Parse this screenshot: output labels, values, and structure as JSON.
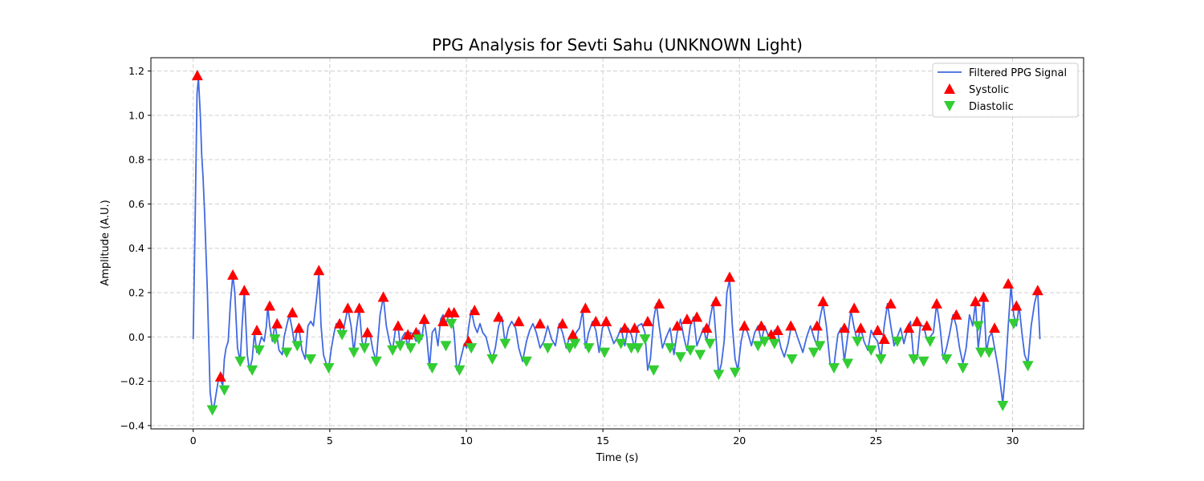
{
  "chart_data": {
    "type": "line",
    "title": "PPG Analysis for Sevti Sahu (UNKNOWN Light)",
    "xlabel": "Time (s)",
    "ylabel": "Amplitude (A.U.)",
    "xlim": [
      -1.55,
      32.6
    ],
    "ylim": [
      -0.415,
      1.26
    ],
    "xticks": [
      0,
      5,
      10,
      15,
      20,
      25,
      30
    ],
    "yticks": [
      -0.4,
      -0.2,
      0.0,
      0.2,
      0.4,
      0.6,
      0.8,
      1.0,
      1.2
    ],
    "ytick_labels": [
      "−0.4",
      "−0.2",
      "0.0",
      "0.2",
      "0.4",
      "0.6",
      "0.8",
      "1.0",
      "1.2"
    ],
    "grid": true,
    "legend_position": "top-right",
    "colors": {
      "signal": "#4169e1",
      "systolic": "#ff0000",
      "diastolic": "#32cd32"
    },
    "series": [
      {
        "name": "Filtered PPG Signal",
        "kind": "line",
        "x": [
          0.0,
          0.06,
          0.14,
          0.19,
          0.26,
          0.31,
          0.36,
          0.42,
          0.52,
          0.62,
          0.7,
          0.78,
          0.86,
          0.94,
          1.02,
          1.08,
          1.14,
          1.2,
          1.28,
          1.36,
          1.45,
          1.52,
          1.62,
          1.72,
          1.79,
          1.87,
          1.98,
          2.06,
          2.16,
          2.24,
          2.33,
          2.41,
          2.5,
          2.6,
          2.68,
          2.73,
          2.8,
          2.9,
          2.99,
          3.07,
          3.14,
          3.26,
          3.33,
          3.42,
          3.52,
          3.63,
          3.72,
          3.81,
          3.87,
          3.98,
          4.1,
          4.2,
          4.3,
          4.4,
          4.52,
          4.6,
          4.68,
          4.77,
          4.87,
          4.96,
          5.06,
          5.16,
          5.24,
          5.36,
          5.45,
          5.53,
          5.66,
          5.78,
          5.88,
          5.98,
          6.08,
          6.18,
          6.27,
          6.38,
          6.48,
          6.58,
          6.7,
          6.84,
          6.96,
          7.07,
          7.18,
          7.3,
          7.4,
          7.5,
          7.58,
          7.66,
          7.76,
          7.86,
          7.96,
          8.06,
          8.16,
          8.26,
          8.37,
          8.46,
          8.55,
          8.65,
          8.75,
          8.86,
          8.96,
          9.06,
          9.15,
          9.25,
          9.36,
          9.45,
          9.55,
          9.65,
          9.75,
          9.83,
          9.93,
          10.01,
          10.08,
          10.18,
          10.3,
          10.4,
          10.5,
          10.6,
          10.72,
          10.84,
          10.95,
          11.06,
          11.18,
          11.3,
          11.42,
          11.54,
          11.66,
          11.8,
          11.92,
          12.06,
          12.2,
          12.32,
          12.44,
          12.56,
          12.7,
          12.84,
          12.98,
          13.12,
          13.26,
          13.4,
          13.52,
          13.66,
          13.78,
          13.9,
          14.02,
          14.14,
          14.26,
          14.36,
          14.48,
          14.62,
          14.74,
          14.86,
          14.98,
          15.12,
          15.26,
          15.4,
          15.54,
          15.66,
          15.8,
          15.92,
          16.04,
          16.16,
          16.28,
          16.42,
          16.54,
          16.64,
          16.74,
          16.86,
          16.96,
          17.06,
          17.18,
          17.32,
          17.46,
          17.6,
          17.72,
          17.84,
          17.96,
          18.08,
          18.2,
          18.32,
          18.44,
          18.56,
          18.68,
          18.8,
          18.92,
          19.04,
          19.14,
          19.24,
          19.34,
          19.44,
          19.54,
          19.64,
          19.74,
          19.84,
          19.94,
          20.06,
          20.18,
          20.3,
          20.44,
          20.56,
          20.68,
          20.8,
          20.92,
          21.04,
          21.16,
          21.28,
          21.4,
          21.52,
          21.64,
          21.78,
          21.9,
          22.04,
          22.18,
          22.32,
          22.46,
          22.6,
          22.72,
          22.84,
          22.94,
          23.06,
          23.18,
          23.32,
          23.46,
          23.6,
          23.72,
          23.84,
          23.96,
          24.08,
          24.2,
          24.32,
          24.44,
          24.56,
          24.7,
          24.82,
          24.94,
          25.06,
          25.18,
          25.3,
          25.42,
          25.54,
          25.66,
          25.78,
          25.9,
          26.02,
          26.14,
          26.26,
          26.38,
          26.5,
          26.62,
          26.74,
          26.86,
          26.98,
          27.1,
          27.22,
          27.34,
          27.46,
          27.58,
          27.7,
          27.82,
          27.94,
          28.06,
          28.18,
          28.3,
          28.42,
          28.54,
          28.64,
          28.74,
          28.84,
          28.94,
          29.04,
          29.14,
          29.24,
          29.34,
          29.44,
          29.54,
          29.64,
          29.74,
          29.84,
          29.94,
          30.04,
          30.14,
          30.24,
          30.34,
          30.44,
          30.56,
          30.68,
          30.8,
          30.92,
          31.0
        ],
        "y": [
          -0.01,
          0.45,
          1.1,
          1.17,
          1.0,
          0.82,
          0.72,
          0.55,
          0.2,
          -0.25,
          -0.33,
          -0.3,
          -0.24,
          -0.18,
          -0.2,
          -0.22,
          -0.1,
          -0.05,
          -0.02,
          0.15,
          0.28,
          0.2,
          -0.05,
          -0.11,
          0.05,
          0.21,
          -0.08,
          -0.15,
          -0.1,
          0.02,
          -0.07,
          -0.04,
          0.0,
          -0.02,
          0.05,
          0.14,
          0.05,
          -0.02,
          0.06,
          0.0,
          -0.06,
          -0.08,
          0.0,
          0.05,
          0.1,
          0.03,
          -0.04,
          0.04,
          0.04,
          -0.06,
          -0.1,
          0.05,
          0.07,
          0.05,
          0.18,
          0.29,
          0.05,
          -0.08,
          -0.12,
          -0.14,
          -0.05,
          0.02,
          0.06,
          0.05,
          0.0,
          0.05,
          0.13,
          0.05,
          -0.07,
          0.04,
          0.13,
          -0.02,
          -0.05,
          0.02,
          0.01,
          -0.06,
          -0.11,
          0.1,
          0.18,
          0.05,
          -0.02,
          -0.06,
          0.03,
          0.05,
          -0.04,
          0.0,
          0.02,
          -0.05,
          0.02,
          0.01,
          -0.02,
          0.03,
          -0.01,
          0.08,
          0.0,
          -0.14,
          0.02,
          0.04,
          -0.04,
          0.08,
          0.1,
          0.06,
          0.1,
          0.11,
          0.02,
          -0.15,
          -0.12,
          -0.08,
          -0.03,
          -0.05,
          0.04,
          0.12,
          0.05,
          0.02,
          0.06,
          0.02,
          0.0,
          -0.06,
          -0.1,
          -0.05,
          0.05,
          0.09,
          -0.03,
          0.04,
          0.07,
          0.04,
          -0.05,
          -0.11,
          -0.02,
          0.03,
          0.06,
          0.02,
          -0.05,
          -0.02,
          0.05,
          -0.01,
          -0.04,
          0.06,
          0.02,
          -0.05,
          0.0,
          -0.03,
          0.02,
          0.04,
          0.12,
          -0.05,
          0.02,
          0.07,
          0.03,
          -0.07,
          0.04,
          0.07,
          0.02,
          -0.03,
          0.0,
          0.04,
          -0.04,
          0.04,
          0.01,
          -0.05,
          0.05,
          0.06,
          0.02,
          -0.15,
          -0.1,
          0.08,
          0.15,
          0.05,
          -0.05,
          0.0,
          0.04,
          -0.08,
          0.02,
          0.08,
          0.0,
          -0.06,
          0.05,
          0.09,
          -0.04,
          0.0,
          0.04,
          -0.02,
          0.08,
          0.16,
          0.0,
          -0.17,
          -0.12,
          -0.02,
          0.2,
          0.26,
          0.05,
          -0.1,
          -0.15,
          -0.02,
          0.05,
          0.02,
          -0.04,
          0.02,
          0.05,
          -0.02,
          0.05,
          0.01,
          -0.02,
          0.03,
          0.02,
          -0.05,
          -0.09,
          -0.03,
          0.05,
          0.03,
          -0.02,
          -0.07,
          0.0,
          0.05,
          0.0,
          -0.04,
          0.08,
          0.15,
          0.05,
          -0.12,
          -0.13,
          0.01,
          0.04,
          -0.11,
          0.0,
          0.12,
          0.04,
          -0.02,
          0.04,
          -0.02,
          -0.06,
          0.03,
          0.0,
          -0.02,
          -0.1,
          0.05,
          0.15,
          0.05,
          -0.04,
          0.0,
          0.04,
          -0.03,
          0.03,
          0.07,
          -0.1,
          -0.1,
          0.05,
          0.05,
          -0.01,
          0.0,
          0.02,
          0.15,
          0.05,
          -0.1,
          -0.05,
          0.02,
          0.1,
          0.05,
          -0.05,
          -0.12,
          -0.05,
          0.1,
          0.05,
          0.16,
          -0.05,
          0.05,
          0.18,
          -0.07,
          0.0,
          0.02,
          -0.05,
          -0.12,
          -0.2,
          -0.3,
          -0.15,
          0.05,
          0.23,
          0.1,
          0.05,
          0.14,
          0.02,
          -0.08,
          -0.12,
          0.05,
          0.15,
          0.21,
          -0.01
        ]
      },
      {
        "name": "Systolic",
        "kind": "scatter",
        "marker": "triangle-up",
        "x": [
          0.15,
          1.0,
          1.45,
          1.87,
          2.33,
          2.8,
          3.07,
          3.63,
          3.87,
          4.6,
          5.36,
          5.66,
          6.08,
          6.38,
          6.96,
          7.5,
          7.86,
          8.16,
          8.46,
          9.15,
          9.36,
          9.55,
          10.08,
          10.3,
          11.18,
          11.92,
          12.7,
          13.52,
          13.9,
          14.36,
          14.74,
          15.12,
          15.8,
          16.16,
          16.64,
          17.06,
          17.72,
          18.08,
          18.44,
          18.8,
          19.14,
          19.64,
          20.18,
          20.8,
          21.16,
          21.4,
          21.88,
          22.84,
          23.06,
          23.84,
          24.2,
          24.44,
          25.06,
          25.3,
          25.54,
          26.2,
          26.5,
          26.86,
          27.22,
          27.94,
          28.64,
          28.94,
          29.34,
          29.84,
          30.14,
          30.92
        ],
        "y": [
          1.18,
          -0.18,
          0.28,
          0.21,
          0.03,
          0.14,
          0.06,
          0.11,
          0.04,
          0.3,
          0.06,
          0.13,
          0.13,
          0.02,
          0.18,
          0.05,
          0.01,
          0.02,
          0.08,
          0.07,
          0.11,
          0.11,
          -0.02,
          0.12,
          0.09,
          0.07,
          0.06,
          0.06,
          0.01,
          0.13,
          0.07,
          0.07,
          0.04,
          0.04,
          0.07,
          0.15,
          0.05,
          0.08,
          0.09,
          0.04,
          0.16,
          0.27,
          0.05,
          0.05,
          0.01,
          0.03,
          0.05,
          0.05,
          0.16,
          0.04,
          0.13,
          0.04,
          0.03,
          -0.01,
          0.15,
          0.04,
          0.07,
          0.05,
          0.15,
          0.1,
          0.16,
          0.18,
          0.04,
          0.24,
          0.14,
          0.21
        ]
      },
      {
        "name": "Diastolic",
        "kind": "scatter",
        "marker": "triangle-down",
        "x": [
          0.7,
          1.14,
          1.72,
          2.16,
          2.41,
          2.99,
          3.42,
          3.81,
          4.3,
          4.96,
          5.45,
          5.88,
          6.27,
          6.7,
          7.3,
          7.58,
          7.96,
          8.26,
          8.75,
          9.25,
          9.45,
          9.75,
          10.18,
          10.95,
          11.42,
          12.2,
          12.98,
          13.78,
          13.98,
          14.48,
          15.06,
          15.66,
          16.04,
          16.28,
          16.54,
          16.86,
          17.46,
          17.84,
          18.2,
          18.56,
          18.92,
          19.24,
          19.84,
          20.68,
          20.92,
          21.28,
          21.92,
          22.72,
          22.94,
          23.46,
          23.96,
          24.32,
          24.82,
          25.18,
          25.78,
          26.38,
          26.74,
          26.98,
          27.58,
          28.18,
          28.74,
          28.84,
          29.14,
          29.64,
          30.04,
          30.56
        ],
        "y": [
          -0.33,
          -0.24,
          -0.11,
          -0.15,
          -0.06,
          -0.01,
          -0.07,
          -0.04,
          -0.1,
          -0.14,
          0.01,
          -0.07,
          -0.05,
          -0.11,
          -0.06,
          -0.04,
          -0.05,
          -0.01,
          -0.14,
          -0.04,
          0.06,
          -0.15,
          -0.05,
          -0.1,
          -0.03,
          -0.11,
          -0.05,
          -0.05,
          -0.03,
          -0.05,
          -0.07,
          -0.03,
          -0.05,
          -0.05,
          -0.01,
          -0.15,
          -0.05,
          -0.09,
          -0.06,
          -0.08,
          -0.03,
          -0.17,
          -0.16,
          -0.04,
          -0.02,
          -0.03,
          -0.1,
          -0.07,
          -0.04,
          -0.14,
          -0.12,
          -0.02,
          -0.06,
          -0.1,
          -0.02,
          -0.1,
          -0.11,
          -0.02,
          -0.1,
          -0.14,
          0.05,
          -0.07,
          -0.07,
          -0.31,
          0.06,
          -0.13
        ]
      }
    ]
  }
}
